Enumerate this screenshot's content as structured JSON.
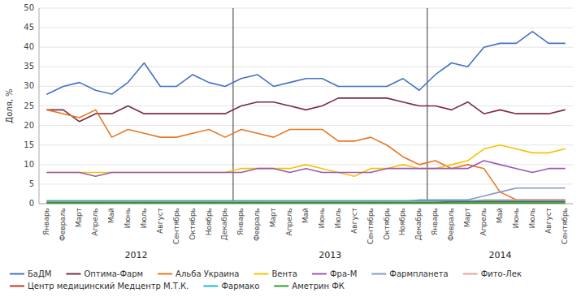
{
  "chart_data": {
    "type": "line",
    "ylabel": "Доля, %",
    "categories": [
      "Январь",
      "Февраль",
      "Март",
      "Апрель",
      "Май",
      "Июнь",
      "Июль",
      "Август",
      "Сентябрь",
      "Октябрь",
      "Ноябрь",
      "Декабрь",
      "Январь",
      "Февраль",
      "Март",
      "Апрель",
      "Май",
      "Июнь",
      "Июль",
      "Август",
      "Сентябрь",
      "Октябрь",
      "Ноябрь",
      "Декабрь",
      "Январь",
      "Февраль",
      "Март",
      "Апрель",
      "Май",
      "Июнь",
      "Июль",
      "Август",
      "Сентябрь"
    ],
    "series": [
      {
        "name": "БаДМ",
        "color": "#4472C4",
        "values": [
          28,
          30,
          31,
          29,
          28,
          31,
          36,
          30,
          30,
          33,
          31,
          30,
          32,
          33,
          30,
          31,
          32,
          32,
          30,
          30,
          30,
          30,
          32,
          29,
          33,
          36,
          35,
          40,
          41,
          41,
          44,
          41,
          41
        ]
      },
      {
        "name": "Оптима-Фарм",
        "color": "#7B2C42",
        "values": [
          24,
          24,
          21,
          23,
          23,
          25,
          23,
          23,
          23,
          23,
          23,
          23,
          25,
          26,
          26,
          25,
          24,
          25,
          27,
          27,
          27,
          27,
          26,
          25,
          25,
          24,
          26,
          23,
          24,
          23,
          23,
          23,
          24
        ]
      },
      {
        "name": "Альба Украина",
        "color": "#E87722",
        "values": [
          24,
          23,
          22,
          24,
          17,
          19,
          18,
          17,
          17,
          18,
          19,
          17,
          19,
          18,
          17,
          19,
          19,
          19,
          16,
          16,
          17,
          15,
          12,
          10,
          11,
          9,
          10,
          9,
          3,
          1,
          1,
          1,
          1
        ]
      },
      {
        "name": "Вента",
        "color": "#F5C400",
        "values": [
          8,
          8,
          8,
          8,
          8,
          8,
          8,
          8,
          8,
          8,
          8,
          8,
          9,
          9,
          9,
          9,
          10,
          9,
          8,
          7,
          9,
          9,
          10,
          9,
          9,
          10,
          11,
          14,
          15,
          14,
          13,
          13,
          14
        ]
      },
      {
        "name": "Фра-М",
        "color": "#9B59B6",
        "values": [
          8,
          8,
          8,
          7,
          8,
          8,
          8,
          8,
          8,
          8,
          8,
          8,
          8,
          9,
          9,
          8,
          9,
          8,
          8,
          8,
          8,
          9,
          9,
          9,
          9,
          9,
          9,
          11,
          10,
          9,
          8,
          9,
          9
        ]
      },
      {
        "name": "Фармпланета",
        "color": "#8898C8",
        "values": [
          0.5,
          0.5,
          0.5,
          0.5,
          0.5,
          0.5,
          0.5,
          0.5,
          0.5,
          0.5,
          0.5,
          0.5,
          0.5,
          0.5,
          0.5,
          0.5,
          0.5,
          0.5,
          0.5,
          0.5,
          0.5,
          0.5,
          0.5,
          1,
          1,
          1,
          1,
          2,
          3,
          4,
          4,
          4,
          4
        ]
      },
      {
        "name": "Фито-Лек",
        "color": "#E8A0A0",
        "values": [
          0.5,
          0.5,
          0.5,
          0.5,
          0.5,
          0.5,
          0.5,
          0.5,
          0.5,
          0.5,
          0.5,
          0.5,
          0.5,
          0.5,
          0.5,
          0.5,
          0.5,
          0.5,
          0.5,
          0.5,
          0.5,
          0.5,
          0.5,
          0.5,
          0.5,
          0.5,
          0.5,
          1,
          1,
          1,
          1,
          1,
          1
        ]
      },
      {
        "name": "Центр медицинский Медцентр М.Т.К.",
        "color": "#C0392B",
        "values": [
          0.3,
          0.3,
          0.3,
          0.3,
          0.3,
          0.3,
          0.3,
          0.3,
          0.3,
          0.3,
          0.3,
          0.3,
          0.3,
          0.3,
          0.3,
          0.3,
          0.3,
          0.3,
          0.3,
          0.3,
          0.3,
          0.3,
          0.3,
          0.3,
          0.3,
          0.5,
          0.5,
          0.5,
          0.5,
          0.5,
          0.5,
          0.5,
          0.5
        ]
      },
      {
        "name": "Фармако",
        "color": "#17BECF",
        "values": [
          0.8,
          0.8,
          0.8,
          0.8,
          0.8,
          0.8,
          0.8,
          0.8,
          0.8,
          0.8,
          0.8,
          0.8,
          0.8,
          0.8,
          0.8,
          0.8,
          0.8,
          0.8,
          0.8,
          0.8,
          0.8,
          0.8,
          0.8,
          0.8,
          0.8,
          0.8,
          0.8,
          0.8,
          0.8,
          0.8,
          0.8,
          0.8,
          0.8
        ]
      },
      {
        "name": "Аметрин ФК",
        "color": "#2CA02C",
        "values": [
          0.2,
          0.2,
          0.2,
          0.2,
          0.2,
          0.2,
          0.2,
          0.2,
          0.2,
          0.2,
          0.2,
          0.2,
          0.2,
          0.2,
          0.2,
          0.2,
          0.2,
          0.2,
          0.2,
          0.2,
          0.2,
          0.2,
          0.2,
          0.2,
          0.2,
          0.2,
          0.2,
          0.2,
          0.2,
          0.2,
          0.2,
          0.2,
          0.2
        ]
      }
    ],
    "ylim": [
      0,
      50
    ],
    "yticks": [
      0,
      5,
      10,
      15,
      20,
      25,
      30,
      35,
      40,
      45,
      50
    ],
    "grid": true,
    "legend": "bottom",
    "annotations": [
      "2012",
      "2013",
      "2014"
    ]
  }
}
